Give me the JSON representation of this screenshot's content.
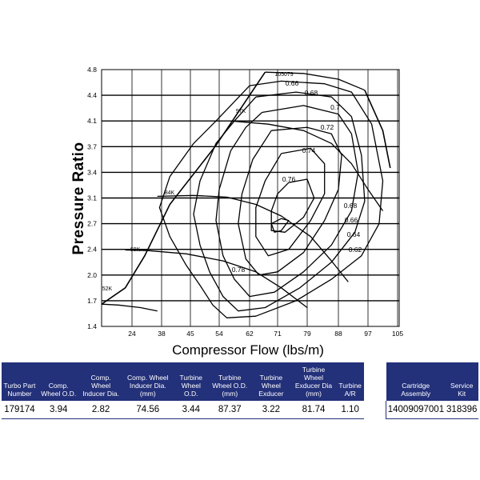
{
  "chart_data": {
    "type": "line",
    "title": "",
    "xlabel": "Compressor Flow (lbs/m)",
    "ylabel": "Pressure Ratio",
    "x_ticks": [
      24,
      38,
      45,
      54,
      62,
      71,
      79,
      88,
      97,
      105
    ],
    "y_ticks": [
      1.4,
      1.7,
      2.0,
      2.4,
      2.7,
      3.1,
      3.4,
      3.7,
      4.1,
      4.4,
      4.8
    ],
    "grid": true,
    "surge_line": [
      [
        15,
        1.66
      ],
      [
        22,
        1.85
      ],
      [
        30,
        2.3
      ],
      [
        40,
        3.0
      ],
      [
        53,
        3.72
      ],
      [
        62,
        4.4
      ],
      [
        67,
        4.76
      ]
    ],
    "choke_line": [
      [
        96,
        4.48
      ],
      [
        101,
        3.95
      ],
      [
        103,
        3.45
      ]
    ],
    "speed_lines": [
      {
        "label": "52K",
        "points": [
          [
            15,
            1.66
          ],
          [
            20,
            1.65
          ],
          [
            28,
            1.62
          ],
          [
            36,
            1.58
          ]
        ]
      },
      {
        "label": "69K",
        "points": [
          [
            22,
            2.39
          ],
          [
            32,
            2.38
          ],
          [
            44,
            2.33
          ],
          [
            55,
            2.22
          ],
          [
            64,
            2.05
          ],
          [
            72,
            1.85
          ],
          [
            79,
            1.62
          ]
        ]
      },
      {
        "label": "84K",
        "points": [
          [
            36,
            3.12
          ],
          [
            46,
            3.13
          ],
          [
            56,
            3.11
          ],
          [
            64,
            3.0
          ],
          [
            72,
            2.82
          ],
          [
            80,
            2.55
          ],
          [
            86,
            2.22
          ],
          [
            91,
            1.92
          ]
        ]
      },
      {
        "label": "97K",
        "points": [
          [
            57,
            4.1
          ],
          [
            68,
            4.05
          ],
          [
            78,
            3.95
          ],
          [
            86,
            3.75
          ],
          [
            92,
            3.5
          ],
          [
            97,
            3.2
          ],
          [
            101,
            2.9
          ]
        ]
      },
      {
        "label": "105079",
        "points": [
          [
            67,
            4.76
          ],
          [
            78,
            4.74
          ],
          [
            88,
            4.65
          ],
          [
            96,
            4.48
          ]
        ]
      }
    ],
    "efficiency_islands": [
      {
        "label": "0.66",
        "points": [
          [
            62,
            4.55
          ],
          [
            72,
            4.62
          ],
          [
            84,
            4.58
          ],
          [
            92,
            4.45
          ],
          [
            98,
            4.05
          ],
          [
            101,
            3.3
          ],
          [
            100,
            2.7
          ],
          [
            95,
            2.3
          ],
          [
            86,
            1.95
          ],
          [
            76,
            1.7
          ],
          [
            64,
            1.52
          ],
          [
            56,
            1.5
          ],
          [
            52,
            1.65
          ],
          [
            48,
            1.88
          ],
          [
            44,
            2.15
          ],
          [
            40,
            2.55
          ],
          [
            37,
            2.95
          ],
          [
            40,
            3.35
          ],
          [
            46,
            3.75
          ],
          [
            53,
            4.1
          ],
          [
            62,
            4.55
          ]
        ]
      },
      {
        "label": "0.68",
        "points": [
          [
            64,
            4.38
          ],
          [
            76,
            4.45
          ],
          [
            86,
            4.38
          ],
          [
            92,
            4.15
          ],
          [
            95,
            3.6
          ],
          [
            96,
            3.05
          ],
          [
            93,
            2.6
          ],
          [
            86,
            2.2
          ],
          [
            77,
            1.85
          ],
          [
            67,
            1.62
          ],
          [
            59,
            1.58
          ],
          [
            55,
            1.75
          ],
          [
            51,
            2.05
          ],
          [
            48,
            2.45
          ],
          [
            46,
            2.85
          ],
          [
            48,
            3.3
          ],
          [
            53,
            3.75
          ],
          [
            58,
            4.1
          ],
          [
            64,
            4.38
          ]
        ]
      },
      {
        "label": "0.7",
        "points": [
          [
            66,
            4.2
          ],
          [
            78,
            4.28
          ],
          [
            88,
            4.18
          ],
          [
            92,
            3.9
          ],
          [
            94,
            3.4
          ],
          [
            92,
            2.9
          ],
          [
            86,
            2.45
          ],
          [
            78,
            2.05
          ],
          [
            70,
            1.8
          ],
          [
            62,
            1.75
          ],
          [
            58,
            1.95
          ],
          [
            55,
            2.3
          ],
          [
            53,
            2.75
          ],
          [
            54,
            3.2
          ],
          [
            57,
            3.65
          ],
          [
            61,
            4.0
          ],
          [
            66,
            4.2
          ]
        ]
      },
      {
        "label": "0.72",
        "points": [
          [
            69,
            3.95
          ],
          [
            79,
            4.0
          ],
          [
            86,
            3.9
          ],
          [
            89,
            3.6
          ],
          [
            88,
            3.2
          ],
          [
            84,
            2.75
          ],
          [
            78,
            2.35
          ],
          [
            71,
            2.05
          ],
          [
            65,
            2.0
          ],
          [
            61,
            2.25
          ],
          [
            59,
            2.7
          ],
          [
            60,
            3.15
          ],
          [
            63,
            3.55
          ],
          [
            69,
            3.95
          ]
        ]
      },
      {
        "label": "0.74",
        "points": [
          [
            72,
            3.62
          ],
          [
            80,
            3.68
          ],
          [
            84,
            3.5
          ],
          [
            84,
            3.15
          ],
          [
            80,
            2.75
          ],
          [
            74,
            2.4
          ],
          [
            68,
            2.3
          ],
          [
            64,
            2.55
          ],
          [
            64,
            2.95
          ],
          [
            67,
            3.3
          ],
          [
            72,
            3.62
          ]
        ]
      },
      {
        "label": "0.76",
        "points": [
          [
            74,
            3.28
          ],
          [
            79,
            3.32
          ],
          [
            81,
            3.1
          ],
          [
            78,
            2.8
          ],
          [
            73,
            2.6
          ],
          [
            69,
            2.62
          ],
          [
            69,
            2.9
          ],
          [
            71,
            3.15
          ],
          [
            74,
            3.28
          ]
        ]
      },
      {
        "label": "0.78",
        "points": [
          [
            72,
            2.78
          ],
          [
            74,
            2.75
          ],
          [
            72,
            2.62
          ],
          [
            70,
            2.6
          ],
          [
            69,
            2.7
          ],
          [
            72,
            2.78
          ]
        ]
      }
    ],
    "annotations": [
      "105079",
      "0.66",
      "0.68",
      "0.7",
      "97K",
      "0.72",
      "0.74",
      "0.76",
      "84K",
      "0.68",
      "0.66",
      "0.64",
      "0.62",
      "69K",
      "0.78",
      "52K"
    ]
  },
  "table": {
    "headers": [
      "Turbo Part Number",
      "Comp. Wheel O.D.",
      "Comp. Wheel Inducer Dia.",
      "Comp. Wheel Inducer Dia. (mm)",
      "Turbine Wheel O.D.",
      "Turbine Wheel O.D. (mm)",
      "Turbine Wheel Exducer",
      "Turbine Wheel Exducer Dia (mm)",
      "Turbine A/R",
      "Cartridge Assembly",
      "Service Kit"
    ],
    "row": [
      "179174",
      "3.94",
      "2.82",
      "74.56",
      "3.44",
      "87.37",
      "3.22",
      "81.74",
      "1.10",
      "14009097001",
      "318396"
    ]
  }
}
